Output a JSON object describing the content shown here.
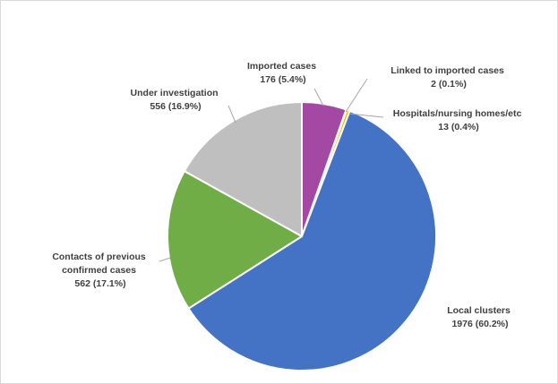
{
  "chart_data": {
    "type": "pie",
    "title": "",
    "slices": [
      {
        "key": "imported",
        "name": "Imported cases",
        "value": 176,
        "pct": "5.4%",
        "color": "#a349a4"
      },
      {
        "key": "linked",
        "name": "Linked to imported cases",
        "value": 2,
        "pct": "0.1%",
        "color": "#ffc000"
      },
      {
        "key": "hospitals",
        "name": "Hospitals/nursing  homes/etc",
        "value": 13,
        "pct": "0.4%",
        "color": "#ffc000"
      },
      {
        "key": "local",
        "name": "Local clusters",
        "value": 1976,
        "pct": "60.2%",
        "color": "#4472c4"
      },
      {
        "key": "contacts",
        "name": "Contacts of previous confirmed cases",
        "value": 562,
        "pct": "17.1%",
        "color": "#70ad47"
      },
      {
        "key": "investigation",
        "name": "Under investigation",
        "value": 556,
        "pct": "16.9%",
        "color": "#bfbfbf"
      }
    ],
    "labels": {
      "imported": [
        "Imported cases",
        "176 (5.4%)"
      ],
      "linked": [
        "Linked to imported cases",
        "2 (0.1%)"
      ],
      "hospitals": [
        "Hospitals/nursing  homes/etc",
        "13 (0.4%)"
      ],
      "local": [
        "Local clusters",
        "1976 (60.2%)"
      ],
      "contacts": [
        "Contacts of previous",
        "confirmed cases",
        "562 (17.1%)"
      ],
      "investigation": [
        "Under investigation",
        "556 (16.9%)"
      ]
    }
  }
}
